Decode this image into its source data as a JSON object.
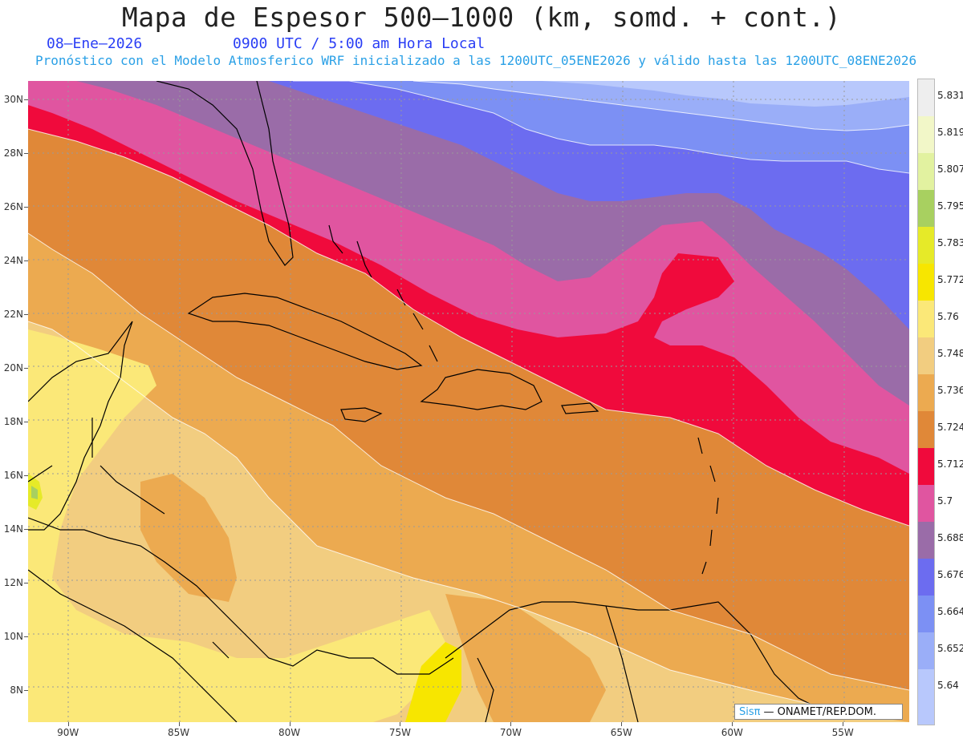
{
  "header": {
    "title": "Mapa de Espesor 500—1000 (km, somd. + cont.)",
    "date": "08—Ene—2026",
    "time": "0900 UTC / 5:00 am Hora Local",
    "forecast": "Pronóstico con el Modelo Atmosferico WRF inicializado a las 1200UTC_05ENE2026 y válido hasta las  1200UTC_08ENE2026"
  },
  "map": {
    "lat_range": [
      6.8,
      30.7
    ],
    "lon_range": [
      -91.8,
      -52.0
    ],
    "lat_labels": [
      "30N",
      "28N",
      "26N",
      "24N",
      "22N",
      "20N",
      "18N",
      "16N",
      "14N",
      "12N",
      "10N",
      "8N"
    ],
    "lat_values": [
      30,
      28,
      26,
      24,
      22,
      20,
      18,
      16,
      14,
      12,
      10,
      8
    ],
    "lon_labels": [
      "90W",
      "85W",
      "80W",
      "75W",
      "70W",
      "65W",
      "60W",
      "55W"
    ],
    "lon_values": [
      -90,
      -85,
      -80,
      -75,
      -70,
      -65,
      -60,
      -55
    ]
  },
  "legend": {
    "levels": [
      "5.831",
      "5.819",
      "5.807",
      "5.795",
      "5.783",
      "5.772",
      "5.76",
      "5.748",
      "5.736",
      "5.724",
      "5.712",
      "5.7",
      "5.688",
      "5.676",
      "5.664",
      "5.652",
      "5.64"
    ],
    "colors": [
      "#eeeeee",
      "#f2f7c8",
      "#e2f2a0",
      "#a8d060",
      "#e6ea28",
      "#f7e600",
      "#fbe878",
      "#f2cd80",
      "#ecaa50",
      "#e08838",
      "#f00a3c",
      "#e055a0",
      "#9a6ca8",
      "#6c6cf0",
      "#7c90f4",
      "#9aaef8",
      "#b8c8fc"
    ]
  },
  "credit": {
    "brand": "Sisπ",
    "text": "— ONAMET/REP.DOM."
  }
}
